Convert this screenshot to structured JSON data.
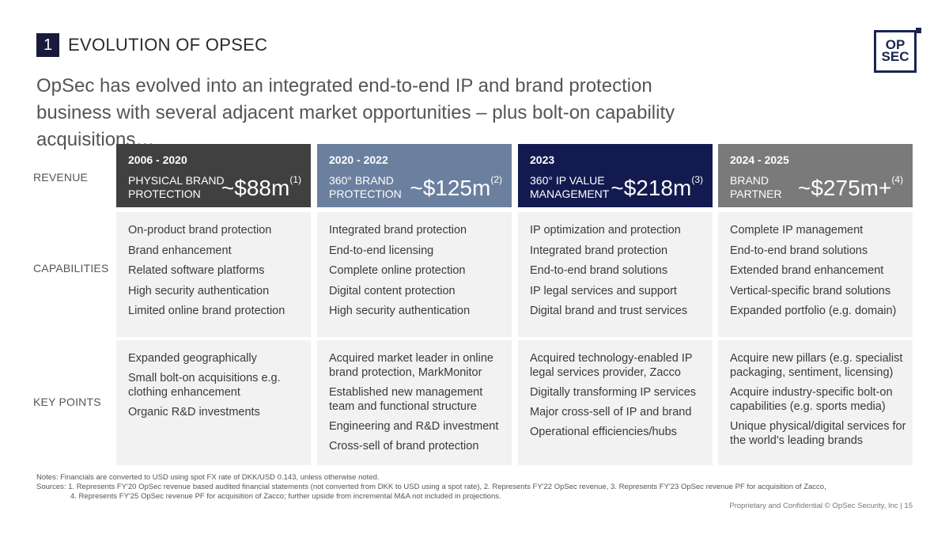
{
  "section": {
    "number": "1",
    "title": "EVOLUTION OF OPSEC"
  },
  "logo": {
    "line1": "OP",
    "line2": "SEC"
  },
  "headline": "OpSec has evolved into an integrated end-to-end IP and brand protection business with several adjacent market opportunities – plus bolt-on capability acquisitions…",
  "row_labels": {
    "revenue": "REVENUE",
    "capabilities": "CAPABILITIES",
    "key_points": "KEY POINTS"
  },
  "columns": [
    {
      "period": "2006 - 2020",
      "category_line1": "PHYSICAL BRAND",
      "category_line2": "PROTECTION",
      "revenue": "~$88m",
      "note": "(1)",
      "color": "#404040",
      "capabilities": [
        "On-product brand protection",
        "Brand enhancement",
        "Related software platforms",
        "High security authentication",
        "Limited online brand protection"
      ],
      "key_points": [
        "Expanded geographically",
        "Small bolt-on acquisitions e.g. clothing enhancement",
        "Organic R&D investments"
      ]
    },
    {
      "period": "2020 - 2022",
      "category_line1": "360° BRAND",
      "category_line2": "PROTECTION",
      "revenue": "~$125m",
      "note": "(2)",
      "color": "#6b7f9e",
      "capabilities": [
        "Integrated brand protection",
        "End-to-end licensing",
        "Complete online protection",
        "Digital content protection",
        "High security authentication"
      ],
      "key_points": [
        "Acquired market leader in online brand protection, MarkMonitor",
        "Established new management team and functional structure",
        "Engineering and R&D investment",
        "Cross-sell of brand protection"
      ]
    },
    {
      "period": "2023",
      "category_line1": "360° IP VALUE",
      "category_line2": "MANAGEMENT",
      "revenue": "~$218m",
      "note": "(3)",
      "color": "#131a4f",
      "capabilities": [
        "IP optimization and protection",
        "Integrated brand protection",
        "End-to-end brand solutions",
        "IP legal services and support",
        "Digital brand and trust services"
      ],
      "key_points": [
        "Acquired technology-enabled IP legal services provider, Zacco",
        "Digitally transforming IP services",
        "Major cross-sell of IP and brand",
        "Operational efficiencies/hubs"
      ]
    },
    {
      "period": "2024 - 2025",
      "category_line1": "BRAND",
      "category_line2": "PARTNER",
      "revenue": "~$275m+",
      "note": "(4)",
      "color": "#7a7a7a",
      "capabilities": [
        "Complete IP management",
        "End-to-end brand solutions",
        "Extended brand enhancement",
        "Vertical-specific brand solutions",
        "Expanded portfolio (e.g. domain)"
      ],
      "key_points": [
        "Acquire new pillars (e.g. specialist packaging, sentiment, licensing)",
        "Acquire industry-specific bolt-on capabilities (e.g. sports media)",
        "Unique physical/digital services for the world's leading brands"
      ]
    }
  ],
  "notes": {
    "line1": "Notes: Financials are converted to USD using spot FX rate of DKK/USD 0.143, unless otherwise noted.",
    "line2": "Sources:   1. Represents FY'20 OpSec revenue based audited financial statements (not converted from DKK to USD using a spot rate), 2. Represents FY'22 OpSec revenue, 3. Represents FY'23 OpSec revenue PF for acquisition of Zacco,",
    "line3": "4. Represents FY'25 OpSec revenue PF for acquisition of Zacco; further upside from incremental M&A not included in projections."
  },
  "footer": "Proprietary and Confidential © OpSec Security, Inc  |  15"
}
